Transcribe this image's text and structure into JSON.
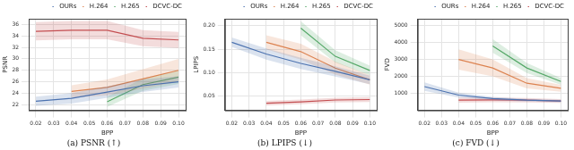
{
  "chart_data": [
    {
      "type": "line",
      "title": "(a) PSNR (↑)",
      "x_label": "BPP",
      "y_label": "PSNR",
      "x": [
        0.02,
        0.04,
        0.06,
        0.08,
        0.1
      ],
      "xlim": [
        0.016,
        0.104
      ],
      "xticks": [
        0.02,
        0.03,
        0.04,
        0.05,
        0.06,
        0.07,
        0.08,
        0.09,
        {
          "value": 0.1,
          "label": "0.10"
        }
      ],
      "ylim": [
        21,
        37
      ],
      "yticks": [
        22,
        24,
        26,
        28,
        30,
        32,
        34,
        36
      ],
      "grid": true,
      "legend": "upper right",
      "series": [
        {
          "name": "OURs",
          "color": "#4c72b0",
          "values": [
            22.6,
            23.1,
            24.2,
            25.3,
            26.0
          ],
          "lower": [
            21.8,
            22.2,
            23.2,
            24.2,
            25.0
          ],
          "upper": [
            23.4,
            24.0,
            25.2,
            26.4,
            27.0
          ]
        },
        {
          "name": "H.264",
          "color": "#dd8452",
          "values": [
            null,
            24.3,
            25.0,
            26.5,
            28.0
          ],
          "lower": [
            null,
            23.2,
            23.6,
            24.8,
            26.0
          ],
          "upper": [
            null,
            25.4,
            26.4,
            28.2,
            30.0
          ]
        },
        {
          "name": "H.265",
          "color": "#55a868",
          "values": [
            null,
            null,
            22.5,
            25.5,
            26.8
          ],
          "lower": [
            null,
            null,
            21.6,
            24.4,
            25.6
          ],
          "upper": [
            null,
            null,
            23.4,
            26.6,
            28.0
          ]
        },
        {
          "name": "DCVC-DC",
          "color": "#c44e52",
          "values": [
            34.8,
            35.0,
            35.0,
            33.6,
            33.3
          ],
          "lower": [
            33.2,
            33.4,
            33.4,
            32.2,
            31.9
          ],
          "upper": [
            36.4,
            36.6,
            36.6,
            35.0,
            34.7
          ]
        }
      ]
    },
    {
      "type": "line",
      "title": "(b) LPIPS (↓)",
      "x_label": "BPP",
      "y_label": "LPIPS",
      "x": [
        0.02,
        0.04,
        0.06,
        0.08,
        0.1
      ],
      "xlim": [
        0.016,
        0.104
      ],
      "xticks": [
        0.02,
        0.03,
        0.04,
        0.05,
        0.06,
        0.07,
        0.08,
        0.09,
        {
          "value": 0.1,
          "label": "0.10"
        }
      ],
      "ylim": [
        0.02,
        0.215
      ],
      "yticks": [
        0.05,
        {
          "value": 0.1,
          "label": "0.10"
        },
        0.15,
        {
          "value": 0.2,
          "label": "0.20"
        }
      ],
      "grid": true,
      "legend": "upper right",
      "series": [
        {
          "name": "OURs",
          "color": "#4c72b0",
          "values": [
            0.165,
            0.14,
            0.12,
            0.103,
            0.085
          ],
          "lower": [
            0.155,
            0.128,
            0.108,
            0.092,
            0.076
          ],
          "upper": [
            0.175,
            0.152,
            0.132,
            0.114,
            0.094
          ]
        },
        {
          "name": "H.264",
          "color": "#dd8452",
          "values": [
            null,
            0.165,
            0.145,
            0.11,
            0.085
          ],
          "lower": [
            null,
            0.15,
            0.128,
            0.096,
            0.075
          ],
          "upper": [
            null,
            0.18,
            0.162,
            0.124,
            0.095
          ]
        },
        {
          "name": "H.265",
          "color": "#55a868",
          "values": [
            null,
            null,
            0.195,
            0.135,
            0.105
          ],
          "lower": [
            null,
            null,
            0.18,
            0.122,
            0.095
          ],
          "upper": [
            null,
            null,
            0.21,
            0.148,
            0.115
          ]
        },
        {
          "name": "DCVC-DC",
          "color": "#c44e52",
          "values": [
            null,
            0.035,
            0.038,
            0.042,
            0.043
          ],
          "lower": [
            null,
            0.03,
            0.033,
            0.037,
            0.038
          ],
          "upper": [
            null,
            0.04,
            0.043,
            0.047,
            0.048
          ]
        }
      ]
    },
    {
      "type": "line",
      "title": "(c) FVD (↓)",
      "x_label": "BPP",
      "y_label": "FVD",
      "x": [
        0.02,
        0.04,
        0.06,
        0.08,
        0.1
      ],
      "xlim": [
        0.016,
        0.104
      ],
      "xticks": [
        0.02,
        0.03,
        0.04,
        0.05,
        0.06,
        0.07,
        0.08,
        0.09,
        {
          "value": 0.1,
          "label": "0.10"
        }
      ],
      "ylim": [
        0,
        5400
      ],
      "yticks": [
        1000,
        2000,
        3000,
        4000,
        5000
      ],
      "grid": true,
      "legend": "upper right",
      "series": [
        {
          "name": "OURs",
          "color": "#4c72b0",
          "values": [
            1400,
            900,
            700,
            600,
            550
          ],
          "lower": [
            1150,
            750,
            600,
            520,
            480
          ],
          "upper": [
            1650,
            1050,
            800,
            680,
            620
          ]
        },
        {
          "name": "H.264",
          "color": "#dd8452",
          "values": [
            null,
            3000,
            2500,
            1600,
            1300
          ],
          "lower": [
            null,
            2400,
            2000,
            1300,
            1100
          ],
          "upper": [
            null,
            3600,
            3000,
            1900,
            1500
          ]
        },
        {
          "name": "H.265",
          "color": "#55a868",
          "values": [
            null,
            null,
            3800,
            2500,
            1700
          ],
          "lower": [
            null,
            null,
            3400,
            2200,
            1500
          ],
          "upper": [
            null,
            null,
            4200,
            2800,
            1900
          ]
        },
        {
          "name": "DCVC-DC",
          "color": "#c44e52",
          "values": [
            null,
            600,
            620,
            600,
            550
          ],
          "lower": [
            null,
            450,
            480,
            470,
            440
          ],
          "upper": [
            null,
            750,
            760,
            730,
            660
          ]
        }
      ]
    }
  ]
}
